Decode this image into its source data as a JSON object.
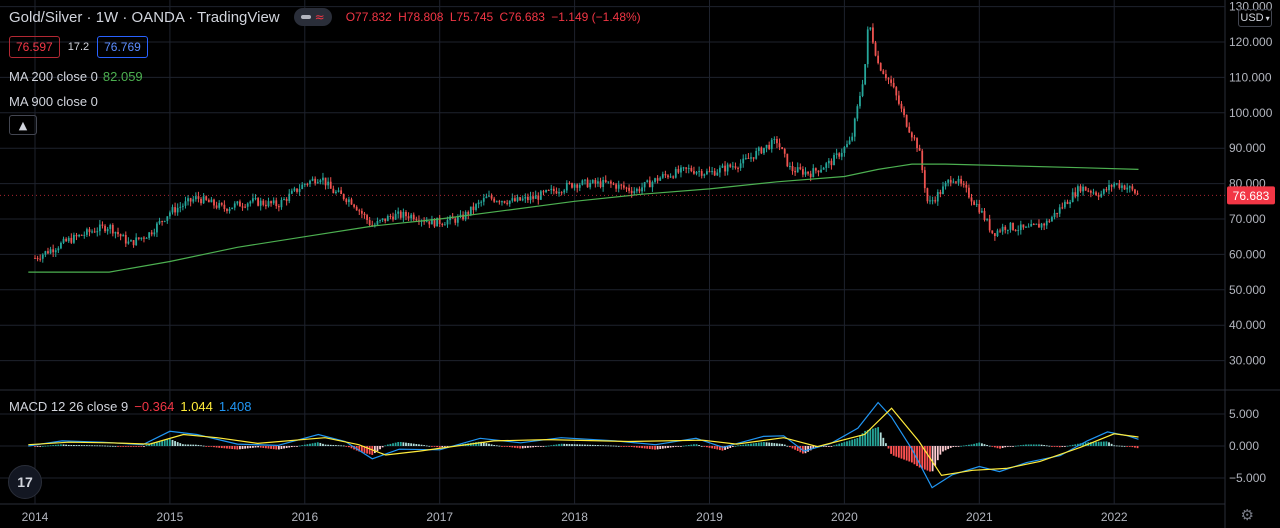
{
  "header": {
    "title": "Gold/Silver · 1W · OANDA · TradingView",
    "ohlc": [
      {
        "key": "O",
        "value": "77.832"
      },
      {
        "key": "H",
        "value": "78.808"
      },
      {
        "key": "L",
        "value": "75.745"
      },
      {
        "key": "C",
        "value": "76.683"
      }
    ],
    "change": "−1.149 (−1.48%)"
  },
  "quotes": {
    "bid": "76.597",
    "spread": "17.2",
    "ask": "76.769"
  },
  "indicators": {
    "ma200_label": "MA 200 close 0",
    "ma200_value": "82.059",
    "ma900_label": "MA 900 close 0",
    "macd_label": "MACD 12 26 close 9",
    "macd_hist": "−0.364",
    "macd_line": "1.044",
    "macd_signal": "1.408"
  },
  "currency": "USD",
  "logo_text": "17",
  "last_price_tag": "76.683",
  "colors": {
    "up": "#26a69a",
    "down": "#ef5350",
    "ma200": "#4caf50",
    "macd": "#2196f3",
    "signal": "#ffeb3b",
    "grid": "#1e222d",
    "tag": "#f23645"
  },
  "icons": [
    "eye-icon",
    "wave-icon",
    "chevron-up-icon",
    "chevron-down-icon",
    "tradingview-logo",
    "settings-gear-icon"
  ],
  "chart_data": [
    {
      "type": "candlestick",
      "title": "Gold/Silver · 1W · OANDA · TradingView",
      "y_ticks": [
        "30.000",
        "40.000",
        "50.000",
        "60.000",
        "70.000",
        "80.000",
        "90.000",
        "100.000",
        "110.000",
        "120.000",
        "130.000"
      ],
      "x_ticks": [
        "2014",
        "2015",
        "2016",
        "2017",
        "2018",
        "2019",
        "2020",
        "2021",
        "2022"
      ],
      "ylim": [
        30,
        130
      ],
      "last_price": 76.683,
      "price_path": [
        [
          2014.0,
          59
        ],
        [
          2014.25,
          64
        ],
        [
          2014.45,
          67
        ],
        [
          2014.55,
          68
        ],
        [
          2014.7,
          63
        ],
        [
          2014.85,
          66
        ],
        [
          2015.0,
          72
        ],
        [
          2015.2,
          76
        ],
        [
          2015.4,
          73
        ],
        [
          2015.6,
          75
        ],
        [
          2015.8,
          74
        ],
        [
          2016.0,
          80
        ],
        [
          2016.12,
          82
        ],
        [
          2016.2,
          78
        ],
        [
          2016.35,
          75
        ],
        [
          2016.5,
          68
        ],
        [
          2016.65,
          71
        ],
        [
          2016.8,
          71
        ],
        [
          2016.95,
          69
        ],
        [
          2017.15,
          70
        ],
        [
          2017.35,
          76
        ],
        [
          2017.55,
          75
        ],
        [
          2017.7,
          76
        ],
        [
          2017.85,
          78
        ],
        [
          2018.0,
          80
        ],
        [
          2018.25,
          80
        ],
        [
          2018.45,
          78
        ],
        [
          2018.65,
          82
        ],
        [
          2018.85,
          84
        ],
        [
          2019.0,
          83
        ],
        [
          2019.25,
          86
        ],
        [
          2019.4,
          90
        ],
        [
          2019.5,
          92
        ],
        [
          2019.6,
          84
        ],
        [
          2019.75,
          83
        ],
        [
          2019.9,
          86
        ],
        [
          2020.05,
          92
        ],
        [
          2020.15,
          112
        ],
        [
          2020.18,
          126
        ],
        [
          2020.25,
          114
        ],
        [
          2020.35,
          108
        ],
        [
          2020.45,
          98
        ],
        [
          2020.55,
          90
        ],
        [
          2020.62,
          74
        ],
        [
          2020.72,
          78
        ],
        [
          2020.8,
          82
        ],
        [
          2020.9,
          78
        ],
        [
          2021.0,
          73
        ],
        [
          2021.1,
          66
        ],
        [
          2021.2,
          68
        ],
        [
          2021.35,
          67
        ],
        [
          2021.5,
          69
        ],
        [
          2021.6,
          73
        ],
        [
          2021.75,
          79
        ],
        [
          2021.9,
          77
        ],
        [
          2022.0,
          80
        ],
        [
          2022.1,
          79
        ],
        [
          2022.18,
          76.683
        ]
      ],
      "ma200": [
        [
          2013.95,
          55
        ],
        [
          2014.55,
          55
        ],
        [
          2015.0,
          58
        ],
        [
          2015.5,
          62
        ],
        [
          2016.0,
          65
        ],
        [
          2016.5,
          68
        ],
        [
          2017.0,
          70
        ],
        [
          2017.5,
          72.5
        ],
        [
          2018.0,
          75
        ],
        [
          2018.5,
          77
        ],
        [
          2019.0,
          78.5
        ],
        [
          2019.5,
          80.5
        ],
        [
          2020.0,
          82
        ],
        [
          2020.25,
          84
        ],
        [
          2020.5,
          85.5
        ],
        [
          2020.75,
          85.5
        ],
        [
          2021.25,
          85
        ],
        [
          2021.75,
          84.5
        ],
        [
          2022.18,
          84
        ]
      ]
    },
    {
      "type": "histogram_line",
      "title": "MACD 12 26 close 9",
      "y_ticks": [
        "5.000",
        "0.000",
        "−5.000"
      ],
      "ylim": [
        -7.8,
        8
      ],
      "macd_line": [
        [
          2013.95,
          0.0
        ],
        [
          2014.2,
          0.8
        ],
        [
          2014.5,
          0.6
        ],
        [
          2014.8,
          0.2
        ],
        [
          2015.0,
          2.3
        ],
        [
          2015.2,
          1.8
        ],
        [
          2015.5,
          0.3
        ],
        [
          2015.8,
          0.1
        ],
        [
          2016.1,
          1.8
        ],
        [
          2016.3,
          0.7
        ],
        [
          2016.5,
          -2.0
        ],
        [
          2016.7,
          -0.5
        ],
        [
          2017.0,
          -0.6
        ],
        [
          2017.3,
          1.2
        ],
        [
          2017.6,
          0.5
        ],
        [
          2017.9,
          1.3
        ],
        [
          2018.3,
          0.8
        ],
        [
          2018.6,
          0.2
        ],
        [
          2018.9,
          1.2
        ],
        [
          2019.1,
          -0.2
        ],
        [
          2019.4,
          1.5
        ],
        [
          2019.55,
          1.6
        ],
        [
          2019.7,
          -0.8
        ],
        [
          2019.9,
          0.4
        ],
        [
          2020.1,
          2.8
        ],
        [
          2020.25,
          6.8
        ],
        [
          2020.35,
          4.5
        ],
        [
          2020.5,
          -0.5
        ],
        [
          2020.65,
          -6.5
        ],
        [
          2020.8,
          -4.5
        ],
        [
          2021.0,
          -3.2
        ],
        [
          2021.15,
          -4.0
        ],
        [
          2021.35,
          -2.6
        ],
        [
          2021.6,
          -1.5
        ],
        [
          2021.8,
          0.8
        ],
        [
          2021.95,
          2.2
        ],
        [
          2022.1,
          1.6
        ],
        [
          2022.18,
          1.044
        ]
      ],
      "signal_line": [
        [
          2013.95,
          0.2
        ],
        [
          2014.25,
          0.6
        ],
        [
          2014.55,
          0.5
        ],
        [
          2014.85,
          0.3
        ],
        [
          2015.1,
          1.8
        ],
        [
          2015.35,
          1.3
        ],
        [
          2015.65,
          0.4
        ],
        [
          2016.15,
          1.3
        ],
        [
          2016.4,
          0.2
        ],
        [
          2016.6,
          -1.4
        ],
        [
          2016.85,
          -0.8
        ],
        [
          2017.4,
          0.8
        ],
        [
          2017.8,
          1.0
        ],
        [
          2018.4,
          0.7
        ],
        [
          2018.95,
          0.9
        ],
        [
          2019.2,
          0.3
        ],
        [
          2019.55,
          1.3
        ],
        [
          2019.8,
          -0.1
        ],
        [
          2020.15,
          1.8
        ],
        [
          2020.35,
          5.9
        ],
        [
          2020.55,
          0.8
        ],
        [
          2020.72,
          -4.6
        ],
        [
          2020.95,
          -3.8
        ],
        [
          2021.2,
          -3.5
        ],
        [
          2021.45,
          -2.4
        ],
        [
          2021.75,
          -0.2
        ],
        [
          2022.0,
          1.9
        ],
        [
          2022.18,
          1.408
        ]
      ],
      "last_histogram": -0.364
    }
  ]
}
